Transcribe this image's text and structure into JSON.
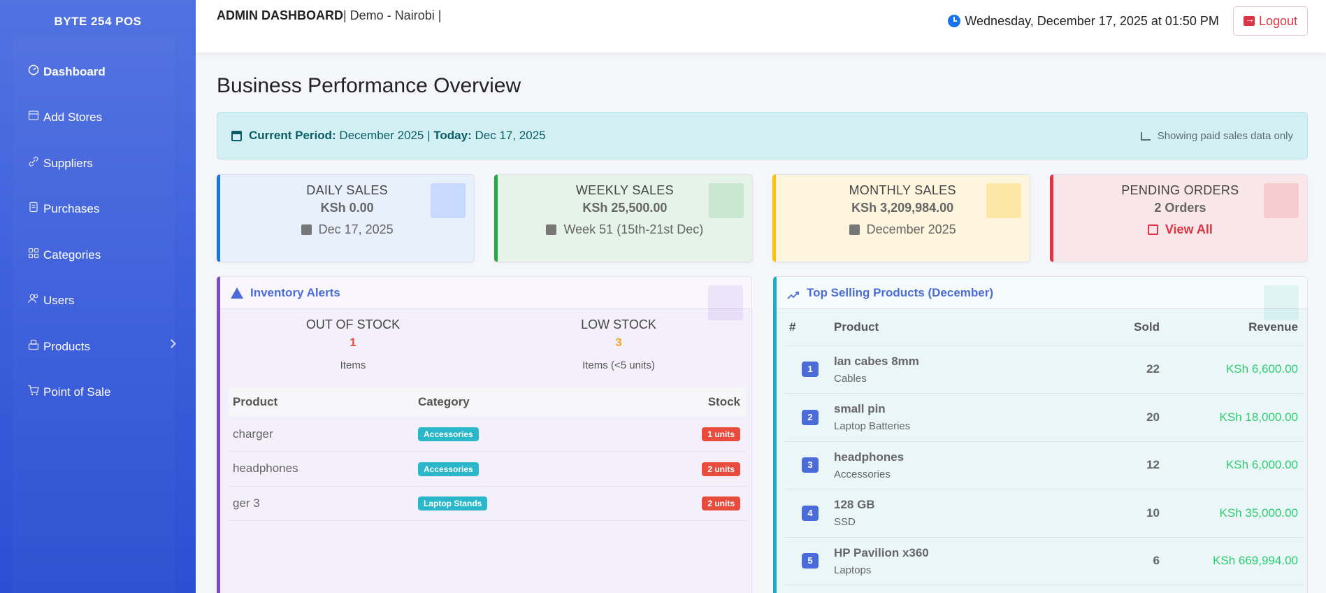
{
  "app": {
    "brand": "BYTE 254 POS"
  },
  "sidebar": {
    "items": [
      {
        "label": "Dashboard",
        "icon": "dashboard-icon",
        "active": true
      },
      {
        "label": "Add Stores",
        "icon": "store-icon"
      },
      {
        "label": "Suppliers",
        "icon": "link-icon"
      },
      {
        "label": "Purchases",
        "icon": "receipt-icon"
      },
      {
        "label": "Categories",
        "icon": "grid-icon"
      },
      {
        "label": "Users",
        "icon": "users-icon"
      },
      {
        "label": "Products",
        "icon": "box-icon",
        "has_submenu": true
      },
      {
        "label": "Point of Sale",
        "icon": "cart-icon"
      }
    ]
  },
  "header": {
    "title": "ADMIN DASHBOARD",
    "subtitle": "| Demo - Nairobi |",
    "datetime": "Wednesday, December 17, 2025 at 01:50 PM",
    "logout_label": "Logout"
  },
  "main": {
    "page_title": "Business Performance Overview",
    "period": {
      "current_label": "Current Period:",
      "current_value": "December 2025",
      "separator": "|",
      "today_label": "Today:",
      "today_value": "Dec 17, 2025",
      "note": "Showing paid sales data only"
    },
    "stats": [
      {
        "label": "DAILY SALES",
        "value": "KSh 0.00",
        "sub": "Dec 17, 2025",
        "color": "#1a73e8"
      },
      {
        "label": "WEEKLY SALES",
        "value": "KSh 25,500.00",
        "sub": "Week 51 (15th-21st Dec)",
        "color": "#28a745"
      },
      {
        "label": "MONTHLY SALES",
        "value": "KSh 3,209,984.00",
        "sub": "December 2025",
        "color": "#ffc107"
      },
      {
        "label": "PENDING ORDERS",
        "value": "2 Orders",
        "sub": "View All",
        "color": "#dc3545"
      }
    ],
    "inventory": {
      "title": "Inventory Alerts",
      "out_of_stock": {
        "label": "OUT OF STOCK",
        "count": "1",
        "sub": "Items"
      },
      "low_stock": {
        "label": "LOW STOCK",
        "count": "3",
        "sub": "Items (<5 units)"
      },
      "columns": [
        "Product",
        "Category",
        "Stock"
      ],
      "rows": [
        {
          "product": "charger",
          "category": "Accessories",
          "stock": "1 units"
        },
        {
          "product": "headphones",
          "category": "Accessories",
          "stock": "2 units"
        },
        {
          "product": "ger 3",
          "category": "Laptop Stands",
          "stock": "2 units"
        }
      ]
    },
    "top_selling": {
      "title": "Top Selling Products (December)",
      "columns": [
        "#",
        "Product",
        "Sold",
        "Revenue"
      ],
      "rows": [
        {
          "rank": "1",
          "product": "lan cabes 8mm",
          "category": "Cables",
          "sold": "22",
          "revenue": "KSh 6,600.00"
        },
        {
          "rank": "2",
          "product": "small pin",
          "category": "Laptop Batteries",
          "sold": "20",
          "revenue": "KSh 18,000.00"
        },
        {
          "rank": "3",
          "product": "headphones",
          "category": "Accessories",
          "sold": "12",
          "revenue": "KSh 6,000.00"
        },
        {
          "rank": "4",
          "product": "128 GB",
          "category": "SSD",
          "sold": "10",
          "revenue": "KSh 35,000.00"
        },
        {
          "rank": "5",
          "product": "HP Pavilion x360",
          "category": "Laptops",
          "sold": "6",
          "revenue": "KSh 669,994.00"
        }
      ]
    }
  }
}
